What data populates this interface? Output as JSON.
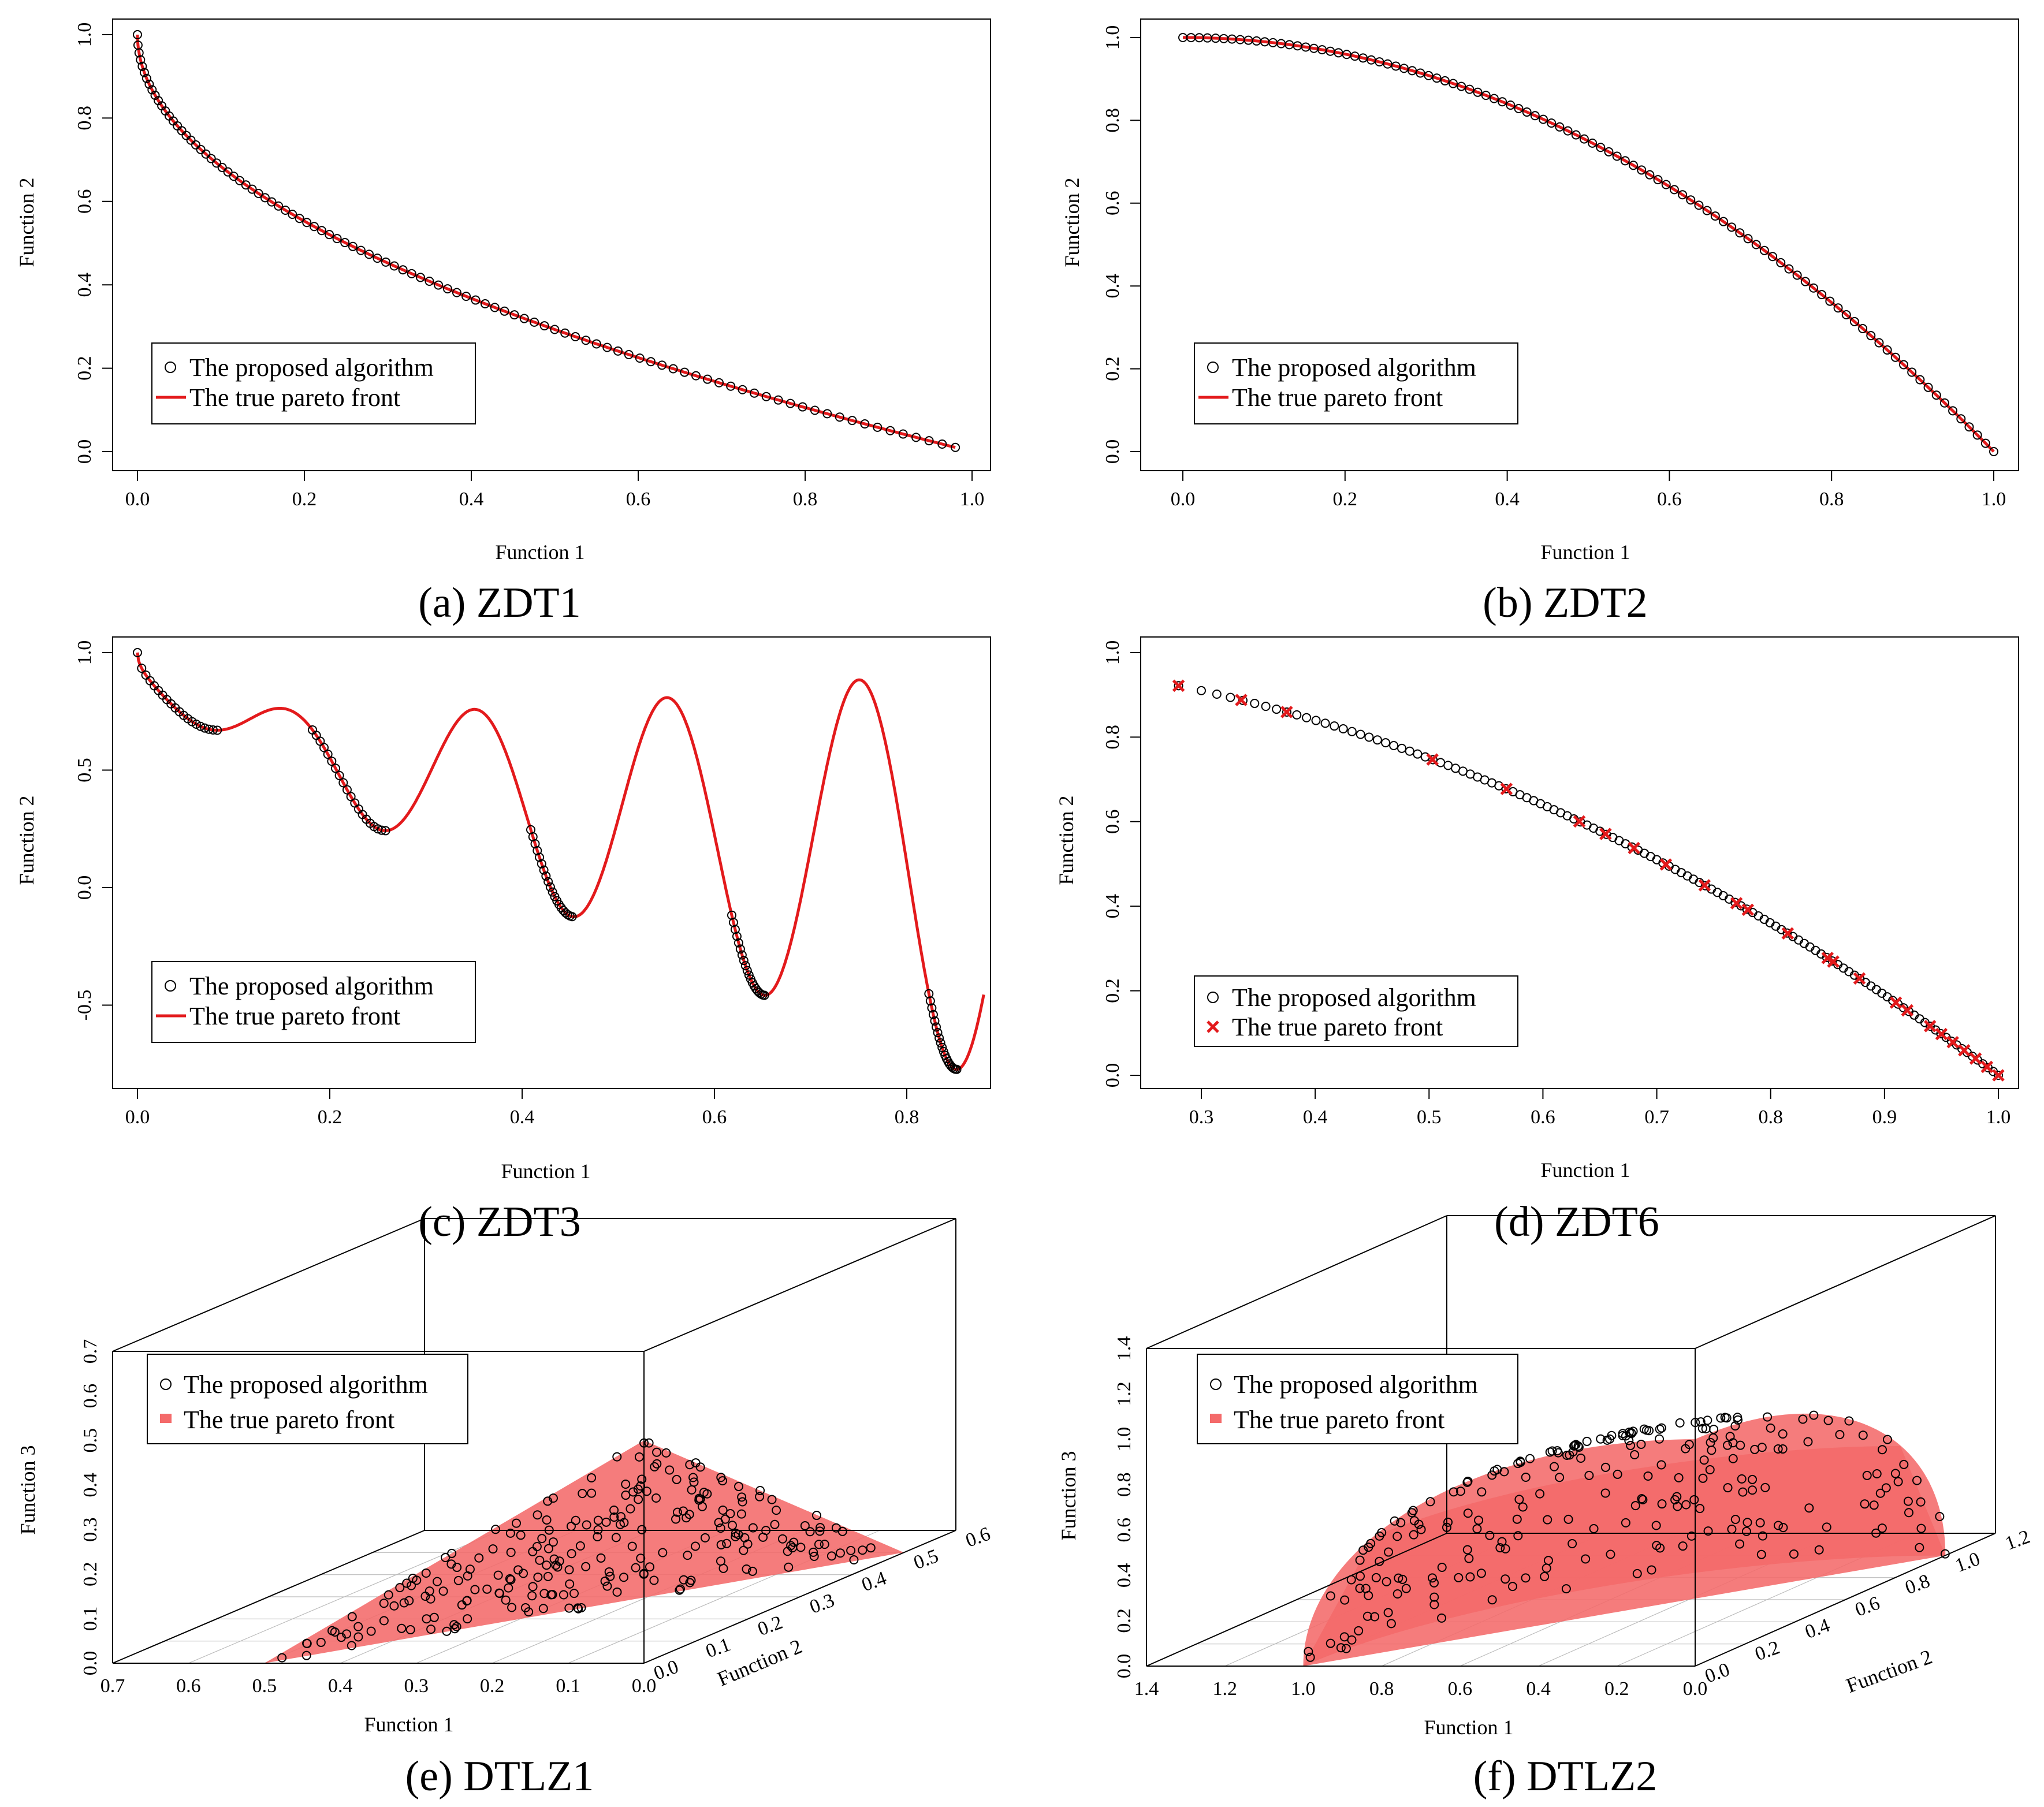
{
  "figure": {
    "legend": {
      "algorithm": "The proposed algorithm",
      "front": "The true pareto front"
    },
    "colors": {
      "front": "#e31a1c",
      "surface": "#f46a6a",
      "points": "#000000"
    }
  },
  "chart_data": [
    {
      "id": "zdt1",
      "type": "line+scatter",
      "caption": "(a) ZDT1",
      "xlabel": "Function 1",
      "ylabel": "Function 2",
      "xlim": [
        0,
        1.0
      ],
      "ylim": [
        0,
        1.0
      ],
      "xticks": [
        "0.0",
        "0.2",
        "0.4",
        "0.6",
        "0.8",
        "1.0"
      ],
      "yticks": [
        "0.0",
        "0.2",
        "0.4",
        "0.6",
        "0.8",
        "1.0"
      ],
      "front": "f2 = 1 - sqrt(f1)",
      "x_range": [
        0,
        0.98
      ],
      "series": [
        {
          "name": "The proposed algorithm",
          "marker": "circle",
          "count": 100
        },
        {
          "name": "The true pareto front",
          "style": "line"
        }
      ]
    },
    {
      "id": "zdt2",
      "type": "line+scatter",
      "caption": "(b) ZDT2",
      "xlabel": "Function 1",
      "ylabel": "Function 2",
      "xlim": [
        0,
        1.0
      ],
      "ylim": [
        0,
        1.0
      ],
      "xticks": [
        "0.0",
        "0.2",
        "0.4",
        "0.6",
        "0.8",
        "1.0"
      ],
      "yticks": [
        "0.0",
        "0.2",
        "0.4",
        "0.6",
        "0.8",
        "1.0"
      ],
      "front": "f2 = 1 - f1^2",
      "x_range": [
        0,
        1.0
      ],
      "series": [
        {
          "name": "The proposed algorithm",
          "marker": "circle",
          "count": 100
        },
        {
          "name": "The true pareto front",
          "style": "line"
        }
      ]
    },
    {
      "id": "zdt3",
      "type": "line+scatter",
      "caption": "(c) ZDT3",
      "xlabel": "Function 1",
      "ylabel": "Function 2",
      "xlim": [
        0,
        0.88
      ],
      "ylim": [
        -0.8,
        1.0
      ],
      "xticks": [
        "0.0",
        "0.2",
        "0.4",
        "0.6",
        "0.8"
      ],
      "yticks": [
        "-0.5",
        "0.0",
        "0.5",
        "1.0"
      ],
      "front": "f2 = 1 - sqrt(f1) - f1*sin(10*pi*f1)",
      "segments": [
        [
          0.0,
          0.083
        ],
        [
          0.182,
          0.258
        ],
        [
          0.409,
          0.452
        ],
        [
          0.618,
          0.652
        ],
        [
          0.823,
          0.852
        ]
      ],
      "series": [
        {
          "name": "The proposed algorithm",
          "marker": "circle",
          "count": 100
        },
        {
          "name": "The true pareto front",
          "style": "line"
        }
      ]
    },
    {
      "id": "zdt6",
      "type": "scatter",
      "caption": "(d) ZDT6",
      "xlabel": "Function 1",
      "ylabel": "Function 2",
      "xlim": [
        0.28,
        1.0
      ],
      "ylim": [
        0,
        1.0
      ],
      "xticks": [
        "0.3",
        "0.4",
        "0.5",
        "0.6",
        "0.7",
        "0.8",
        "0.9",
        "1.0"
      ],
      "yticks": [
        "0.0",
        "0.2",
        "0.4",
        "0.6",
        "0.8",
        "1.0"
      ],
      "front": "f2 = 1 - f1^2",
      "front_markers_x": [
        0.28,
        0.335,
        0.375,
        0.503,
        0.568,
        0.632,
        0.655,
        0.68,
        0.708,
        0.742,
        0.77,
        0.78,
        0.815,
        0.85,
        0.855,
        0.878,
        0.91,
        0.92,
        0.94,
        0.95,
        0.96,
        0.97,
        0.98,
        0.99,
        1.0
      ],
      "series": [
        {
          "name": "The proposed algorithm",
          "marker": "circle",
          "count": 120
        },
        {
          "name": "The true pareto front",
          "marker": "cross"
        }
      ]
    },
    {
      "id": "dtlz1",
      "type": "scatter3d",
      "caption": "(e) DTLZ1",
      "xlabel": "Function 1",
      "ylabel": "Function 2",
      "zlabel": "Function 3",
      "xticks": [
        "0.7",
        "0.6",
        "0.5",
        "0.4",
        "0.3",
        "0.2",
        "0.1",
        "0.0"
      ],
      "yticks": [
        "0.0",
        "0.1",
        "0.2",
        "0.3",
        "0.4",
        "0.5",
        "0.6"
      ],
      "zticks": [
        "0.0",
        "0.1",
        "0.2",
        "0.3",
        "0.4",
        "0.5",
        "0.6",
        "0.7"
      ],
      "front": "f1 + f2 + f3 = 0.5",
      "series": [
        {
          "name": "The proposed algorithm",
          "marker": "circle",
          "count": 240
        },
        {
          "name": "The true pareto front",
          "style": "surface"
        }
      ]
    },
    {
      "id": "dtlz2",
      "type": "scatter3d",
      "caption": "(f) DTLZ2",
      "xlabel": "Function 1",
      "ylabel": "Function 2",
      "zlabel": "Function 3",
      "xticks": [
        "1.4",
        "1.2",
        "1.0",
        "0.8",
        "0.6",
        "0.4",
        "0.2",
        "0.0"
      ],
      "yticks": [
        "0.0",
        "0.2",
        "0.4",
        "0.6",
        "0.8",
        "1.0",
        "1.2"
      ],
      "zticks": [
        "0.0",
        "0.2",
        "0.4",
        "0.6",
        "0.8",
        "1.0",
        "1.2",
        "1.4"
      ],
      "front": "f1^2 + f2^2 + f3^2 = 1",
      "series": [
        {
          "name": "The proposed algorithm",
          "marker": "circle",
          "count": 240
        },
        {
          "name": "The true pareto front",
          "style": "surface"
        }
      ]
    }
  ]
}
